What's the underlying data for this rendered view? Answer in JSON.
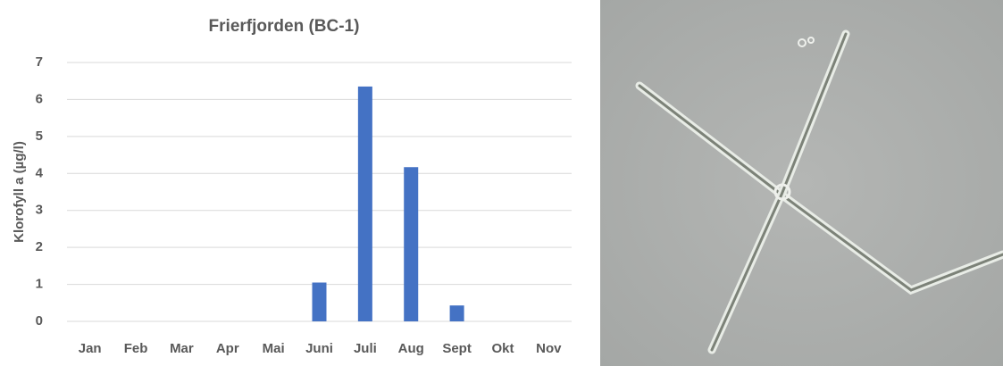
{
  "chart_data": {
    "type": "bar",
    "title": "Frierfjorden (BC-1)",
    "y_label": "Klorofyll a (µg/l)",
    "categories": [
      "Jan",
      "Feb",
      "Mar",
      "Apr",
      "Mai",
      "Juni",
      "Juli",
      "Aug",
      "Sept",
      "Okt",
      "Nov"
    ],
    "values": [
      null,
      null,
      null,
      null,
      null,
      1.05,
      6.35,
      4.17,
      0.43,
      null,
      null
    ],
    "color": "#4472c4",
    "ylim": [
      0,
      7
    ],
    "yticks": [
      0,
      1,
      2,
      3,
      4,
      5,
      6,
      7
    ],
    "grid": true
  }
}
